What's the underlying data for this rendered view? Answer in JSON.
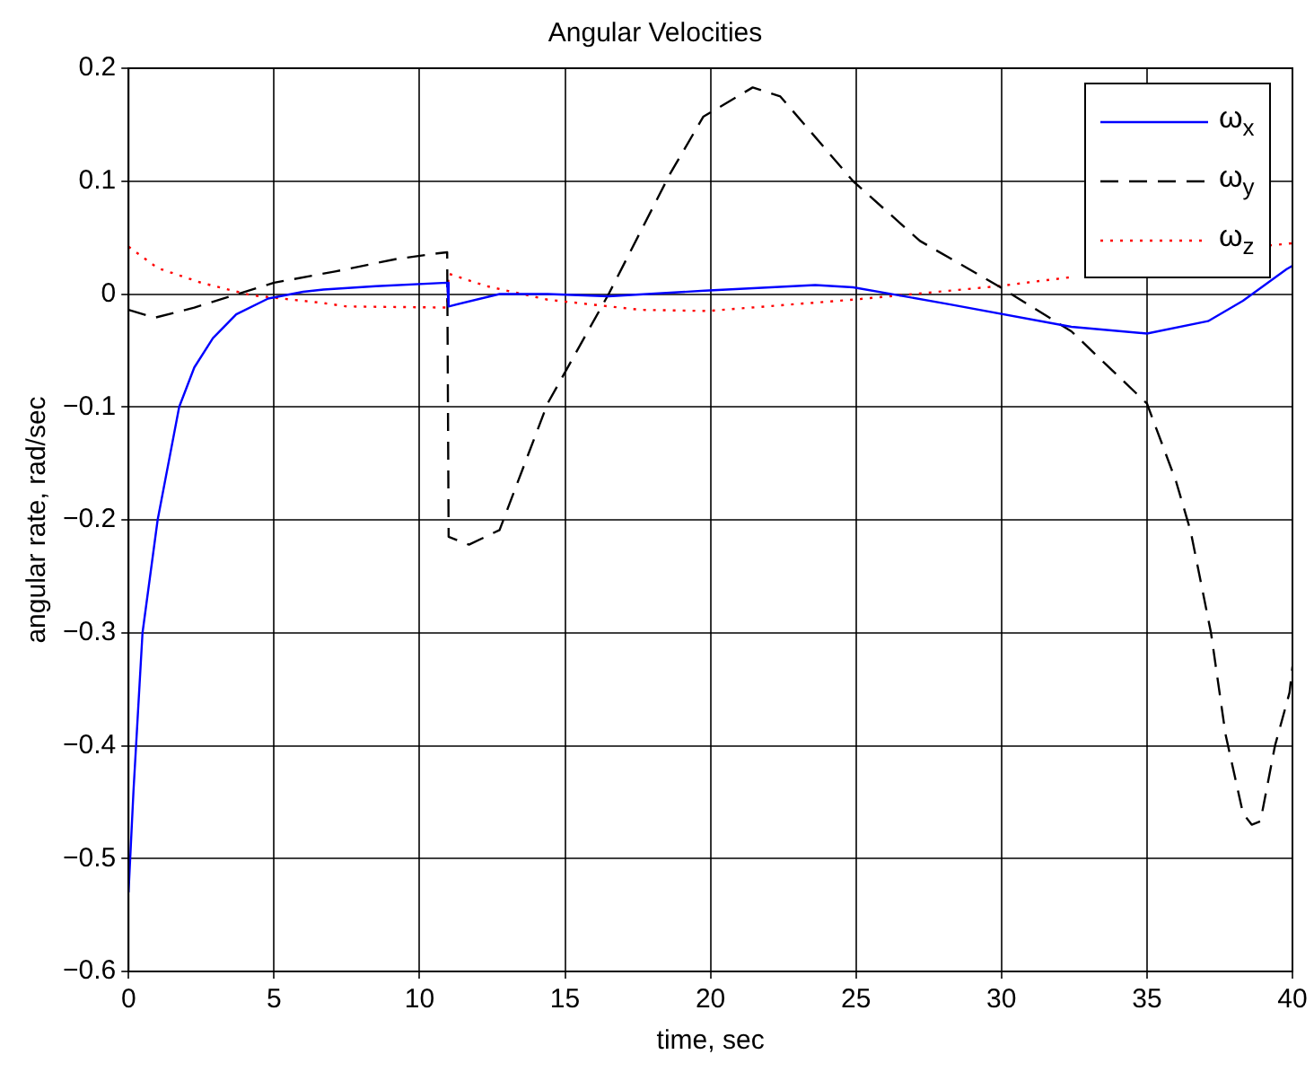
{
  "chart_data": {
    "type": "line",
    "title": "Angular Velocities",
    "xlabel": "time, sec",
    "ylabel": "angular rate, rad/sec",
    "xlim": [
      0,
      40
    ],
    "xticks": [
      0,
      5,
      10,
      15,
      20,
      25,
      30,
      35,
      40
    ],
    "ylim": [
      -0.6,
      0.2
    ],
    "yticks": [
      -0.6,
      -0.5,
      -0.4,
      -0.3,
      -0.2,
      -0.1,
      0,
      0.1,
      0.2
    ],
    "grid": true,
    "legend": "top right",
    "marker": "none",
    "series": [
      {
        "name": "ω$_{x}$",
        "color": "#0000ff",
        "line_style": "solid",
        "x": [
          0,
          0.17,
          0.48,
          1.0,
          1.74,
          2.26,
          2.9,
          3.7,
          4.8,
          6.0,
          6.7,
          8.5,
          10.95,
          11.0,
          12.75,
          14.4,
          16.5,
          19.8,
          23.6,
          24.9,
          28.2,
          32.4,
          35.0,
          37.1,
          38.3,
          39.8,
          40
        ],
        "values": [
          -0.53,
          -0.44,
          -0.3,
          -0.2,
          -0.1,
          -0.065,
          -0.039,
          -0.018,
          -0.004,
          0.002,
          0.004,
          0.007,
          0.01,
          -0.011,
          0,
          0,
          -0.002,
          0.003,
          0.008,
          0.006,
          -0.009,
          -0.029,
          -0.035,
          -0.024,
          -0.006,
          0.022,
          0.025
        ]
      },
      {
        "name": "ω$_{y}$",
        "color": "#000000",
        "line_style": "dashed",
        "x": [
          0,
          0.9,
          2.26,
          5.0,
          7.1,
          9.2,
          10.6,
          10.95,
          11.0,
          11.7,
          12.75,
          14.4,
          16.5,
          18.6,
          19.75,
          21.45,
          22.4,
          24.9,
          27.2,
          29.9,
          32.4,
          35.0,
          36.0,
          36.5,
          37.2,
          37.7,
          38.3,
          38.6,
          38.9,
          39.4,
          39.9,
          40
        ],
        "values": [
          -0.014,
          -0.021,
          -0.012,
          0.01,
          0.02,
          0.031,
          0.036,
          0.037,
          -0.215,
          -0.222,
          -0.209,
          -0.097,
          0,
          0.106,
          0.157,
          0.183,
          0.175,
          0.1,
          0.047,
          0.007,
          -0.033,
          -0.097,
          -0.166,
          -0.21,
          -0.3,
          -0.39,
          -0.46,
          -0.47,
          -0.467,
          -0.4,
          -0.353,
          -0.33
        ]
      },
      {
        "name": "ω$_{z}$",
        "color": "#ff0000",
        "line_style": "dotted",
        "x": [
          0,
          1.0,
          2.5,
          4.2,
          6.7,
          7.5,
          10.95,
          11.0,
          12.3,
          14.4,
          17.6,
          19.9,
          24.9,
          29.9,
          32.4,
          33,
          39,
          39.2,
          40
        ],
        "values": [
          0.042,
          0.023,
          0.01,
          -0.001,
          -0.008,
          -0.011,
          -0.012,
          0.018,
          0.007,
          -0.005,
          -0.014,
          -0.015,
          -0.005,
          0.007,
          0.015,
          null,
          null,
          0.043,
          0.045
        ]
      }
    ]
  }
}
